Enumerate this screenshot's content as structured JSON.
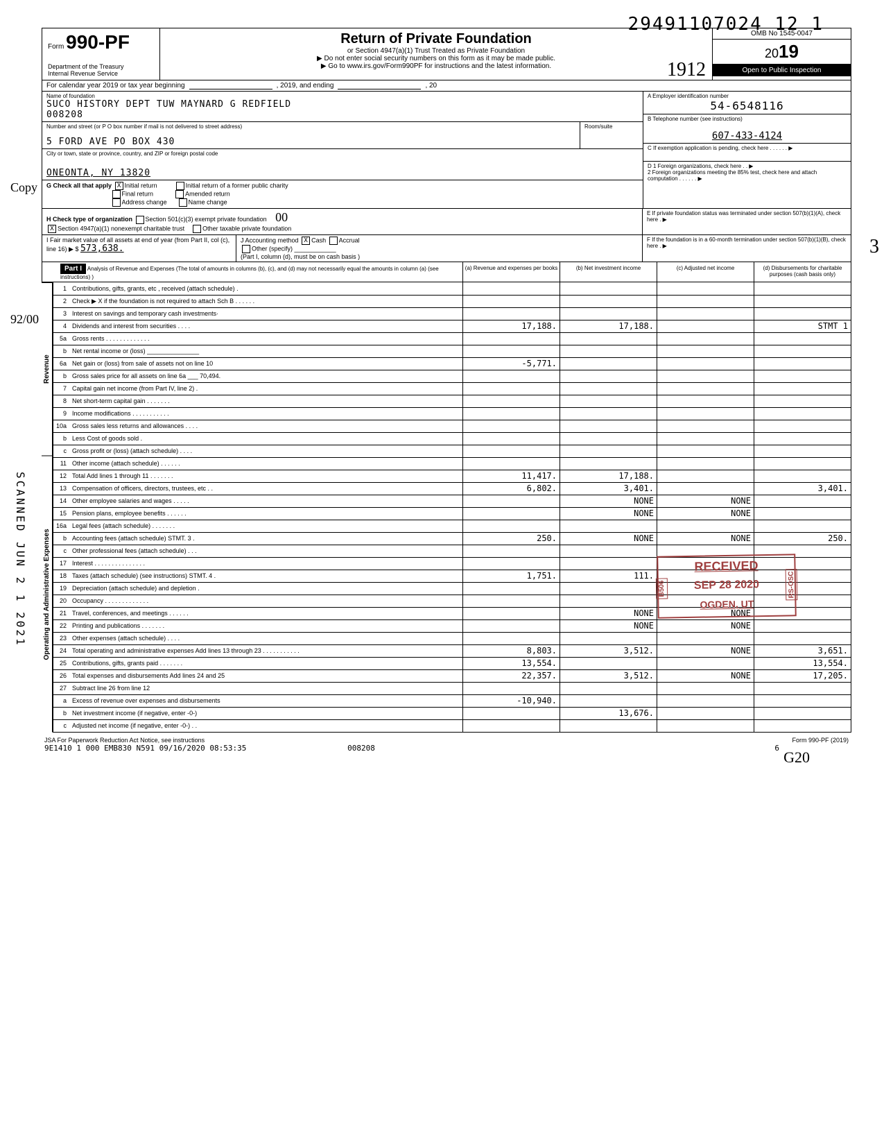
{
  "top_stamp": "29491107024 12  1",
  "header": {
    "form_prefix": "Form",
    "form_number": "990-PF",
    "dept1": "Department of the Treasury",
    "dept2": "Internal Revenue Service",
    "title": "Return of Private Foundation",
    "sub1": "or Section 4947(a)(1) Trust Treated as Private Foundation",
    "sub2": "▶ Do not enter social security numbers on this form as it may be made public.",
    "sub3": "▶ Go to www.irs.gov/Form990PF for instructions and the latest information.",
    "omb": "OMB No 1545-0047",
    "year": "2019",
    "year_big_digits": "19",
    "inspection": "Open to Public Inspection",
    "hand1912": "1912"
  },
  "cal_row": {
    "prefix": "For calendar year 2019 or tax year beginning",
    "mid": ", 2019, and ending",
    "suffix": ", 20"
  },
  "foundation": {
    "name_label": "Name of foundation",
    "name": "SUCO HISTORY DEPT TUW MAYNARD G REDFIELD",
    "code": "008208",
    "ein_label": "A  Employer identification number",
    "ein": "54-6548116",
    "addr_label": "Number and street (or P O  box number if mail is not delivered to street address)",
    "room_label": "Room/suite",
    "addr": "5 FORD AVE   PO BOX 430",
    "phone_label": "B  Telephone number (see instructions)",
    "phone": "607-433-4124",
    "city_label": "City or town, state or province, country, and ZIP or foreign postal code",
    "city": "ONEONTA, NY 13820",
    "c_label": "C  If exemption application is pending, check here . . . . . .  ▶"
  },
  "boxG": {
    "label": "G  Check all that apply",
    "initial": "Initial return",
    "initial_former": "Initial return of a former public charity",
    "final": "Final return",
    "amended": "Amended return",
    "addrchg": "Address change",
    "namechg": "Name change"
  },
  "boxD": {
    "d1": "D  1  Foreign organizations, check here . .  ▶",
    "d2": "2  Foreign organizations meeting the 85% test, check here and attach computation  . . . . . .  ▶"
  },
  "boxH": {
    "label": "H  Check type of organization",
    "c501": "Section 501(c)(3) exempt private foundation",
    "c4947": "Section 4947(a)(1) nonexempt charitable trust",
    "other": "Other taxable private foundation",
    "hand00": "00"
  },
  "boxE": "E  If private foundation status was terminated under section 507(b)(1)(A), check here .  ▶",
  "boxI": {
    "label": "I  Fair market value of all assets at end of year (from Part II, col (c), line 16) ▶ $",
    "val": "573,638."
  },
  "boxJ": {
    "label": "J  Accounting method",
    "cash": "Cash",
    "accrual": "Accrual",
    "other": "Other (specify)",
    "note": "(Part I, column (d), must be on cash basis )"
  },
  "boxF": "F  If the foundation is in a 60-month termination under section 507(b)(1)(B), check here .  ▶",
  "part1": {
    "label": "Part I",
    "desc": "Analysis of Revenue and Expenses (The total of amounts in columns (b), (c), and (d) may not necessarily equal the amounts in column (a) (see instructions) )",
    "colA": "(a) Revenue and expenses per books",
    "colB": "(b) Net investment income",
    "colC": "(c) Adjusted net income",
    "colD": "(d) Disbursements for charitable purposes (cash basis only)"
  },
  "side_rev": "Revenue",
  "side_exp": "Operating and Administrative Expenses",
  "rows": [
    {
      "n": "1",
      "d": "",
      "a": "",
      "b": "",
      "c": ""
    },
    {
      "n": "2",
      "d": "",
      "a": "",
      "b": "",
      "c": ""
    },
    {
      "n": "3",
      "d": "",
      "a": "",
      "b": "",
      "c": ""
    },
    {
      "n": "4",
      "d": "STMT 1",
      "a": "17,188.",
      "b": "17,188.",
      "c": ""
    },
    {
      "n": "5a",
      "d": "",
      "a": "",
      "b": "",
      "c": ""
    },
    {
      "n": "b",
      "d": "",
      "a": "",
      "b": "",
      "c": ""
    },
    {
      "n": "6a",
      "d": "",
      "a": "-5,771.",
      "b": "",
      "c": ""
    },
    {
      "n": "b",
      "d": "",
      "a": "",
      "b": "",
      "c": ""
    },
    {
      "n": "7",
      "d": "",
      "a": "",
      "b": "",
      "c": ""
    },
    {
      "n": "8",
      "d": "",
      "a": "",
      "b": "",
      "c": ""
    },
    {
      "n": "9",
      "d": "",
      "a": "",
      "b": "",
      "c": ""
    },
    {
      "n": "10a",
      "d": "",
      "a": "",
      "b": "",
      "c": ""
    },
    {
      "n": "b",
      "d": "",
      "a": "",
      "b": "",
      "c": ""
    },
    {
      "n": "c",
      "d": "",
      "a": "",
      "b": "",
      "c": ""
    },
    {
      "n": "11",
      "d": "",
      "a": "",
      "b": "",
      "c": ""
    },
    {
      "n": "12",
      "d": "",
      "a": "11,417.",
      "b": "17,188.",
      "c": ""
    },
    {
      "n": "13",
      "d": "3,401.",
      "a": "6,802.",
      "b": "3,401.",
      "c": ""
    },
    {
      "n": "14",
      "d": "",
      "a": "",
      "b": "NONE",
      "c": "NONE"
    },
    {
      "n": "15",
      "d": "",
      "a": "",
      "b": "NONE",
      "c": "NONE"
    },
    {
      "n": "16a",
      "d": "",
      "a": "",
      "b": "",
      "c": ""
    },
    {
      "n": "b",
      "d": "250.",
      "a": "250.",
      "b": "NONE",
      "c": "NONE"
    },
    {
      "n": "c",
      "d": "",
      "a": "",
      "b": "",
      "c": ""
    },
    {
      "n": "17",
      "d": "",
      "a": "",
      "b": "",
      "c": ""
    },
    {
      "n": "18",
      "d": "",
      "a": "1,751.",
      "b": "111.",
      "c": ""
    },
    {
      "n": "19",
      "d": "",
      "a": "",
      "b": "",
      "c": ""
    },
    {
      "n": "20",
      "d": "",
      "a": "",
      "b": "",
      "c": ""
    },
    {
      "n": "21",
      "d": "",
      "a": "",
      "b": "NONE",
      "c": "NONE"
    },
    {
      "n": "22",
      "d": "",
      "a": "",
      "b": "NONE",
      "c": "NONE"
    },
    {
      "n": "23",
      "d": "",
      "a": "",
      "b": "",
      "c": ""
    },
    {
      "n": "24",
      "d": "3,651.",
      "a": "8,803.",
      "b": "3,512.",
      "c": "NONE"
    },
    {
      "n": "25",
      "d": "13,554.",
      "a": "13,554.",
      "b": "",
      "c": ""
    },
    {
      "n": "26",
      "d": "17,205.",
      "a": "22,357.",
      "b": "3,512.",
      "c": "NONE"
    },
    {
      "n": "27",
      "d": "",
      "a": "",
      "b": "",
      "c": ""
    },
    {
      "n": "a",
      "d": "",
      "a": "-10,940.",
      "b": "",
      "c": ""
    },
    {
      "n": "b",
      "d": "",
      "a": "",
      "b": "13,676.",
      "c": ""
    },
    {
      "n": "c",
      "d": "",
      "a": "",
      "b": "",
      "c": ""
    }
  ],
  "received": {
    "r1": "RECEIVED",
    "r2": "SEP 28 2020",
    "r3": "OGDEN, UT",
    "side1": "B506",
    "side2": "RS-OSC"
  },
  "scanned": "SCANNED JUN 2 1 2021",
  "margin_copy": "Copy",
  "margin_9200": "92/00",
  "hand_num3": "3",
  "footer": {
    "left": "JSA  For Paperwork Reduction Act Notice, see instructions",
    "right": "Form 990-PF (2019)",
    "l2a": "9E1410 1 000",
    "l2b": "EMB830 N591 09/16/2020 08:53:35",
    "l2c": "008208",
    "l2d": "6"
  },
  "hand620": "G20"
}
